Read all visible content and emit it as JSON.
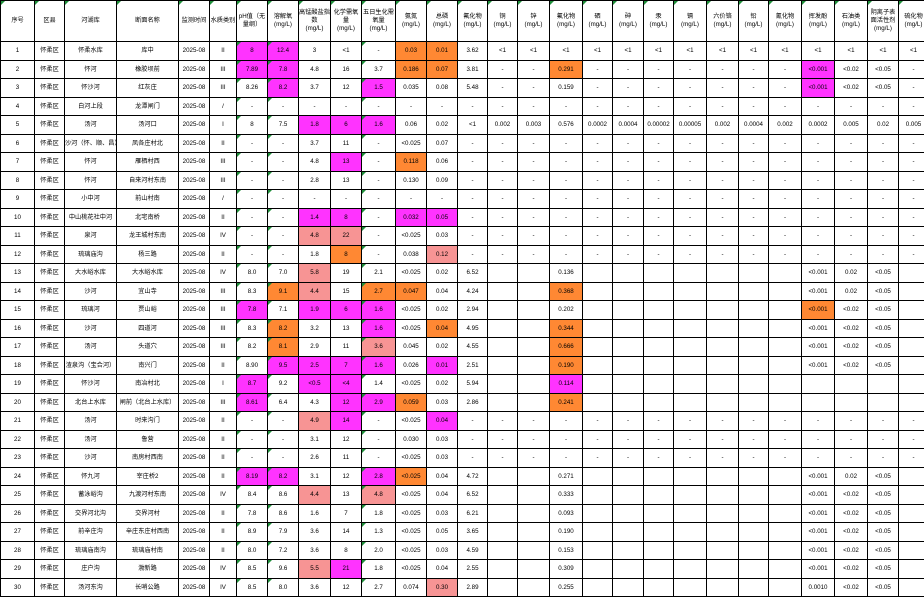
{
  "colors": {
    "pink": "#ff33ff",
    "salmon": "#f79494",
    "orange": "#ff8833",
    "red": "#ff5c5c",
    "flag": "#1f8f3a"
  },
  "headers": [
    {
      "label": "序号",
      "unit": ""
    },
    {
      "label": "区县",
      "unit": ""
    },
    {
      "label": "河湖库",
      "unit": ""
    },
    {
      "label": "断面名称",
      "unit": ""
    },
    {
      "label": "监测时间",
      "unit": ""
    },
    {
      "label": "水质类别",
      "unit": ""
    },
    {
      "label": "pH值（无量纲）",
      "unit": ""
    },
    {
      "label": "溶解氧",
      "unit": "(mg/L)"
    },
    {
      "label": "高锰酸盐指数",
      "unit": "(mg/L)"
    },
    {
      "label": "化学需氧量",
      "unit": "(mg/L)"
    },
    {
      "label": "五日生化需氧量",
      "unit": "(mg/L)"
    },
    {
      "label": "氨氮",
      "unit": "(mg/L)"
    },
    {
      "label": "总磷",
      "unit": "(mg/L)"
    },
    {
      "label": "氟化物",
      "unit": "(mg/L)"
    },
    {
      "label": "铜",
      "unit": "(mg/L)"
    },
    {
      "label": "锌",
      "unit": "(mg/L)"
    },
    {
      "label": "氟化物",
      "unit": "(mg/L)"
    },
    {
      "label": "硒",
      "unit": "(mg/L)"
    },
    {
      "label": "砷",
      "unit": "(mg/L)"
    },
    {
      "label": "汞",
      "unit": "(mg/L)"
    },
    {
      "label": "镉",
      "unit": "(mg/L)"
    },
    {
      "label": "六价铬",
      "unit": "(mg/L)"
    },
    {
      "label": "铅",
      "unit": "(mg/L)"
    },
    {
      "label": "氰化物",
      "unit": "(mg/L)"
    },
    {
      "label": "挥发酚",
      "unit": "(mg/L)"
    },
    {
      "label": "石油类",
      "unit": "(mg/L)"
    },
    {
      "label": "阴离子表面活性剂",
      "unit": "(mg/L)"
    },
    {
      "label": "硫化物",
      "unit": "(mg/L)"
    }
  ],
  "rows": [
    {
      "cells": [
        "1",
        "怀柔区",
        "怀柔水库",
        "库中",
        "2025-08",
        "II",
        "8",
        "12.4",
        "3",
        "<1",
        "-",
        "0.03",
        "0.01",
        "3.62",
        "<1",
        "<1",
        "<1",
        "<1",
        "<1",
        "<1",
        "<1",
        "<1",
        "<1",
        "<1",
        "<1",
        "<1",
        "<1",
        "<1"
      ],
      "hl": {
        "6": "pink",
        "7": "pink",
        "11": "orange",
        "12": "orange"
      }
    },
    {
      "cells": [
        "2",
        "怀柔区",
        "怀河",
        "橡胶坝前",
        "2025-08",
        "III",
        "7.89",
        "7.8",
        "4.8",
        "16",
        "3.7",
        "0.186",
        "0.07",
        "3.81",
        "-",
        "-",
        "0.291",
        "-",
        "-",
        "-",
        "-",
        "-",
        "-",
        "-",
        "<0.001",
        "<0.02",
        "<0.05",
        "-"
      ],
      "hl": {
        "6": "pink",
        "7": "pink",
        "11": "orange",
        "12": "orange",
        "16": "orange",
        "24": "pink"
      }
    },
    {
      "cells": [
        "3",
        "怀柔区",
        "怀沙河",
        "红灰庄",
        "2025-08",
        "III",
        "8.26",
        "8.2",
        "3.7",
        "12",
        "1.5",
        "0.035",
        "0.08",
        "5.48",
        "-",
        "-",
        "0.159",
        "-",
        "-",
        "-",
        "-",
        "-",
        "-",
        "-",
        "<0.001",
        "<0.02",
        "<0.05",
        "-"
      ],
      "hl": {
        "7": "pink",
        "10": "pink",
        "24": "pink"
      }
    },
    {
      "cells": [
        "4",
        "怀柔区",
        "白河上段",
        "龙潭闸门",
        "2025-08",
        "/",
        "-",
        "-",
        "-",
        "-",
        "-",
        "-",
        "-",
        "-",
        "-",
        "-",
        "-",
        "-",
        "-",
        "-",
        "-",
        "-",
        "-",
        "-",
        "-",
        "-",
        "-",
        "-"
      ],
      "hl": {}
    },
    {
      "cells": [
        "5",
        "怀柔区",
        "汤河",
        "汤河口",
        "2025-08",
        "I",
        "8",
        "7.5",
        "1.8",
        "6",
        "1.6",
        "0.06",
        "0.02",
        "<1",
        "0.002",
        "0.003",
        "0.576",
        "0.0002",
        "0.0004",
        "0.00002",
        "0.00005",
        "0.002",
        "0.0004",
        "0.002",
        "0.0002",
        "0.005",
        "0.02",
        "0.005"
      ],
      "hl": {
        "8": "pink",
        "9": "pink",
        "10": "pink"
      }
    },
    {
      "cells": [
        "6",
        "怀柔区",
        "沙河（怀、顺、昌）",
        "凤各庄村北",
        "2025-08",
        "II",
        "-",
        "-",
        "3.7",
        "11",
        "-",
        "<0.025",
        "0.07",
        "-",
        "-",
        "-",
        "-",
        "-",
        "-",
        "-",
        "-",
        "-",
        "-",
        "-",
        "-",
        "-",
        "-",
        "-"
      ],
      "hl": {}
    },
    {
      "cells": [
        "7",
        "怀柔区",
        "怀河",
        "雁栖村西",
        "2025-08",
        "III",
        "-",
        "-",
        "4.8",
        "13",
        "-",
        "0.118",
        "0.06",
        "-",
        "-",
        "-",
        "-",
        "-",
        "-",
        "-",
        "-",
        "-",
        "-",
        "-",
        "-",
        "-",
        "-",
        "-"
      ],
      "hl": {
        "9": "pink",
        "11": "orange"
      }
    },
    {
      "cells": [
        "8",
        "怀柔区",
        "怀河",
        "自来河村东南",
        "2025-08",
        "III",
        "-",
        "-",
        "2.8",
        "13",
        "-",
        "0.130",
        "0.09",
        "-",
        "-",
        "-",
        "-",
        "-",
        "-",
        "-",
        "-",
        "-",
        "-",
        "-",
        "-",
        "-",
        "-",
        "-"
      ],
      "hl": {}
    },
    {
      "cells": [
        "9",
        "怀柔区",
        "小中河",
        "前山村南",
        "2025-08",
        "/",
        "-",
        "-",
        "-",
        "-",
        "-",
        "-",
        "-",
        "-",
        "-",
        "-",
        "-",
        "-",
        "-",
        "-",
        "-",
        "-",
        "-",
        "-",
        "-",
        "-",
        "-",
        "-"
      ],
      "hl": {}
    },
    {
      "cells": [
        "10",
        "怀柔区",
        "中山桃花社中河",
        "北宅南桥",
        "2025-08",
        "II",
        "-",
        "-",
        "1.4",
        "8",
        "-",
        "0.032",
        "0.05",
        "-",
        "-",
        "-",
        "-",
        "-",
        "-",
        "-",
        "-",
        "-",
        "-",
        "-",
        "-",
        "-",
        "-",
        "-"
      ],
      "hl": {
        "8": "pink",
        "9": "pink",
        "11": "pink",
        "12": "pink"
      }
    },
    {
      "cells": [
        "11",
        "怀柔区",
        "泉河",
        "龙王城村东南",
        "2025-08",
        "IV",
        "-",
        "-",
        "4.8",
        "22",
        "-",
        "<0.025",
        "0.03",
        "-",
        "-",
        "-",
        "-",
        "-",
        "-",
        "-",
        "-",
        "-",
        "-",
        "-",
        "-",
        "-",
        "-",
        "-"
      ],
      "hl": {
        "8": "salmon",
        "9": "salmon"
      }
    },
    {
      "cells": [
        "12",
        "怀柔区",
        "琉璃庙沟",
        "杨三路",
        "2025-08",
        "II",
        "-",
        "-",
        "1.8",
        "8",
        "-",
        "0.038",
        "0.12",
        "-",
        "-",
        "-",
        "-",
        "-",
        "-",
        "-",
        "-",
        "-",
        "-",
        "-",
        "-",
        "-",
        "-",
        "-"
      ],
      "hl": {
        "9": "orange",
        "12": "salmon"
      }
    },
    {
      "cells": [
        "13",
        "怀柔区",
        "大水峪水库",
        "大水峪水库",
        "2025-08",
        "IV",
        "8.0",
        "7.0",
        "5.8",
        "19",
        "2.1",
        "<0.025",
        "0.02",
        "6.52",
        "",
        "",
        "0.136",
        "",
        "",
        "",
        "",
        "",
        "",
        "",
        "<0.001",
        "0.02",
        "<0.05",
        ""
      ],
      "hl": {
        "8": "salmon"
      }
    },
    {
      "cells": [
        "14",
        "怀柔区",
        "沙河",
        "宜山寺",
        "2025-08",
        "III",
        "8.3",
        "9.1",
        "4.4",
        "15",
        "2.7",
        "0.047",
        "0.04",
        "4.24",
        "",
        "",
        "0.368",
        "",
        "",
        "",
        "",
        "",
        "",
        "",
        "<0.001",
        "0.02",
        "<0.05",
        ""
      ],
      "hl": {
        "7": "orange",
        "8": "salmon",
        "10": "orange",
        "11": "orange",
        "16": "orange"
      }
    },
    {
      "cells": [
        "15",
        "怀柔区",
        "琉璃河",
        "贾山峪",
        "2025-08",
        "III",
        "7.8",
        "7.1",
        "1.9",
        "6",
        "1.6",
        "<0.025",
        "0.02",
        "2.94",
        "",
        "",
        "0.202",
        "",
        "",
        "",
        "",
        "",
        "",
        "",
        "<0.001",
        "<0.02",
        "<0.05",
        ""
      ],
      "hl": {
        "6": "pink",
        "8": "pink",
        "9": "pink",
        "10": "pink",
        "24": "orange"
      }
    },
    {
      "cells": [
        "16",
        "怀柔区",
        "沙河",
        "四道河",
        "2025-08",
        "III",
        "8.3",
        "8.2",
        "3.2",
        "13",
        "1.6",
        "<0.025",
        "0.04",
        "4.95",
        "",
        "",
        "0.344",
        "",
        "",
        "",
        "",
        "",
        "",
        "",
        "<0.001",
        "<0.02",
        "<0.05",
        ""
      ],
      "hl": {
        "7": "orange",
        "10": "pink",
        "12": "orange",
        "16": "orange"
      }
    },
    {
      "cells": [
        "17",
        "怀柔区",
        "汤河",
        "头道穴",
        "2025-08",
        "III",
        "8.2",
        "8.1",
        "2.9",
        "11",
        "3.6",
        "0.045",
        "0.02",
        "4.55",
        "",
        "",
        "0.666",
        "",
        "",
        "",
        "",
        "",
        "",
        "",
        "<0.001",
        "<0.02",
        "<0.05",
        ""
      ],
      "hl": {
        "7": "orange",
        "10": "salmon",
        "16": "orange"
      }
    },
    {
      "cells": [
        "18",
        "怀柔区",
        "渣泉沟（宝合河）",
        "南兴门",
        "2025-08",
        "II",
        "8.90",
        "9.5",
        "2.5",
        "7",
        "1.6",
        "0.026",
        "0.01",
        "2.51",
        "",
        "",
        "0.190",
        "",
        "",
        "",
        "",
        "",
        "",
        "",
        "<0.001",
        "<0.02",
        "<0.05",
        ""
      ],
      "hl": {
        "7": "pink",
        "8": "pink",
        "9": "pink",
        "10": "pink",
        "12": "pink",
        "16": "orange"
      }
    },
    {
      "cells": [
        "19",
        "怀柔区",
        "怀沙河",
        "南冶村北",
        "2025-08",
        "I",
        "8.7",
        "9.2",
        "<0.5",
        "<4",
        "1.4",
        "<0.025",
        "0.02",
        "5.94",
        "",
        "",
        "0.114",
        "",
        "",
        "",
        "",
        "",
        "",
        "",
        "",
        "",
        "",
        ""
      ],
      "hl": {
        "6": "pink",
        "8": "pink",
        "9": "pink",
        "16": "pink"
      }
    },
    {
      "cells": [
        "20",
        "怀柔区",
        "北台上水库",
        "闸前（北台上水库）",
        "2025-08",
        "III",
        "8.61",
        "6.4",
        "4.3",
        "12",
        "2.9",
        "0.059",
        "0.03",
        "2.86",
        "",
        "",
        "0.241",
        "",
        "",
        "",
        "",
        "",
        "",
        "",
        "",
        "",
        "",
        ""
      ],
      "hl": {
        "6": "pink",
        "9": "pink",
        "10": "pink",
        "11": "orange",
        "16": "orange"
      }
    },
    {
      "cells": [
        "21",
        "怀柔区",
        "汤河",
        "时来沟门",
        "2025-08",
        "II",
        "-",
        "-",
        "4.9",
        "14",
        "-",
        "<0.025",
        "0.04",
        "-",
        "-",
        "-",
        "-",
        "-",
        "-",
        "-",
        "-",
        "-",
        "-",
        "-",
        "-",
        "-",
        "-",
        "-"
      ],
      "hl": {
        "8": "salmon",
        "9": "pink",
        "12": "pink"
      }
    },
    {
      "cells": [
        "22",
        "怀柔区",
        "汤河",
        "鲁营",
        "2025-08",
        "II",
        "-",
        "-",
        "3.1",
        "12",
        "-",
        "0.030",
        "0.03",
        "-",
        "-",
        "-",
        "-",
        "-",
        "-",
        "-",
        "-",
        "-",
        "-",
        "-",
        "-",
        "-",
        "-",
        "-"
      ],
      "hl": {}
    },
    {
      "cells": [
        "23",
        "怀柔区",
        "沙河",
        "南房村西南",
        "2025-08",
        "II",
        "-",
        "-",
        "2.6",
        "11",
        "-",
        "<0.025",
        "0.03",
        "-",
        "-",
        "-",
        "-",
        "-",
        "-",
        "-",
        "-",
        "-",
        "-",
        "-",
        "-",
        "-",
        "-",
        "-"
      ],
      "hl": {}
    },
    {
      "cells": [
        "24",
        "怀柔区",
        "怀九河",
        "宰庄桥2",
        "2025-08",
        "II",
        "8.19",
        "8.2",
        "3.1",
        "12",
        "2.8",
        "<0.025",
        "0.04",
        "4.72",
        "",
        "",
        "0.271",
        "",
        "",
        "",
        "",
        "",
        "",
        "",
        "<0.001",
        "0.02",
        "<0.05",
        ""
      ],
      "hl": {
        "6": "pink",
        "7": "pink",
        "10": "pink",
        "11": "orange"
      }
    },
    {
      "cells": [
        "25",
        "怀柔区",
        "蓄泳峪沟",
        "九渡河村东南",
        "2025-08",
        "IV",
        "8.4",
        "8.6",
        "4.4",
        "13",
        "4.8",
        "<0.025",
        "0.04",
        "6.52",
        "",
        "",
        "0.333",
        "",
        "",
        "",
        "",
        "",
        "",
        "",
        "<0.001",
        "<0.02",
        "<0.05",
        ""
      ],
      "hl": {
        "8": "salmon",
        "10": "salmon"
      }
    },
    {
      "cells": [
        "26",
        "怀柔区",
        "交界河北沟",
        "交界河村",
        "2025-08",
        "II",
        "7.8",
        "8.6",
        "1.6",
        "7",
        "1.8",
        "<0.025",
        "0.03",
        "6.21",
        "",
        "",
        "0.093",
        "",
        "",
        "",
        "",
        "",
        "",
        "",
        "<0.001",
        "<0.02",
        "<0.05",
        ""
      ],
      "hl": {}
    },
    {
      "cells": [
        "27",
        "怀柔区",
        "前辛庄沟",
        "辛庄东庄村西南",
        "2025-08",
        "II",
        "8.9",
        "7.9",
        "3.6",
        "14",
        "1.3",
        "<0.025",
        "0.05",
        "3.65",
        "",
        "",
        "0.190",
        "",
        "",
        "",
        "",
        "",
        "",
        "",
        "<0.001",
        "<0.02",
        "<0.05",
        ""
      ],
      "hl": {}
    },
    {
      "cells": [
        "28",
        "怀柔区",
        "琉璃庙南沟",
        "琉璃庙村南",
        "2025-08",
        "II",
        "8.0",
        "7.2",
        "3.6",
        "8",
        "2.0",
        "<0.025",
        "0.03",
        "4.59",
        "",
        "",
        "0.153",
        "",
        "",
        "",
        "",
        "",
        "",
        "",
        "<0.001",
        "<0.02",
        "<0.05",
        ""
      ],
      "hl": {}
    },
    {
      "cells": [
        "29",
        "怀柔区",
        "庄户沟",
        "渤新路",
        "2025-08",
        "IV",
        "8.5",
        "9.6",
        "5.5",
        "21",
        "1.8",
        "<0.025",
        "0.04",
        "2.55",
        "",
        "",
        "0.309",
        "",
        "",
        "",
        "",
        "",
        "",
        "",
        "<0.001",
        "<0.02",
        "<0.05",
        ""
      ],
      "hl": {
        "8": "salmon",
        "9": "pink"
      }
    },
    {
      "cells": [
        "30",
        "怀柔区",
        "汤河东沟",
        "长哨公路",
        "2025-08",
        "IV",
        "8.5",
        "8.0",
        "3.6",
        "12",
        "2.7",
        "0.074",
        "0.30",
        "2.89",
        "",
        "",
        "0.255",
        "",
        "",
        "",
        "",
        "",
        "",
        "",
        "0.0010",
        "<0.02",
        "<0.05",
        ""
      ],
      "hl": {
        "12": "salmon"
      }
    }
  ]
}
